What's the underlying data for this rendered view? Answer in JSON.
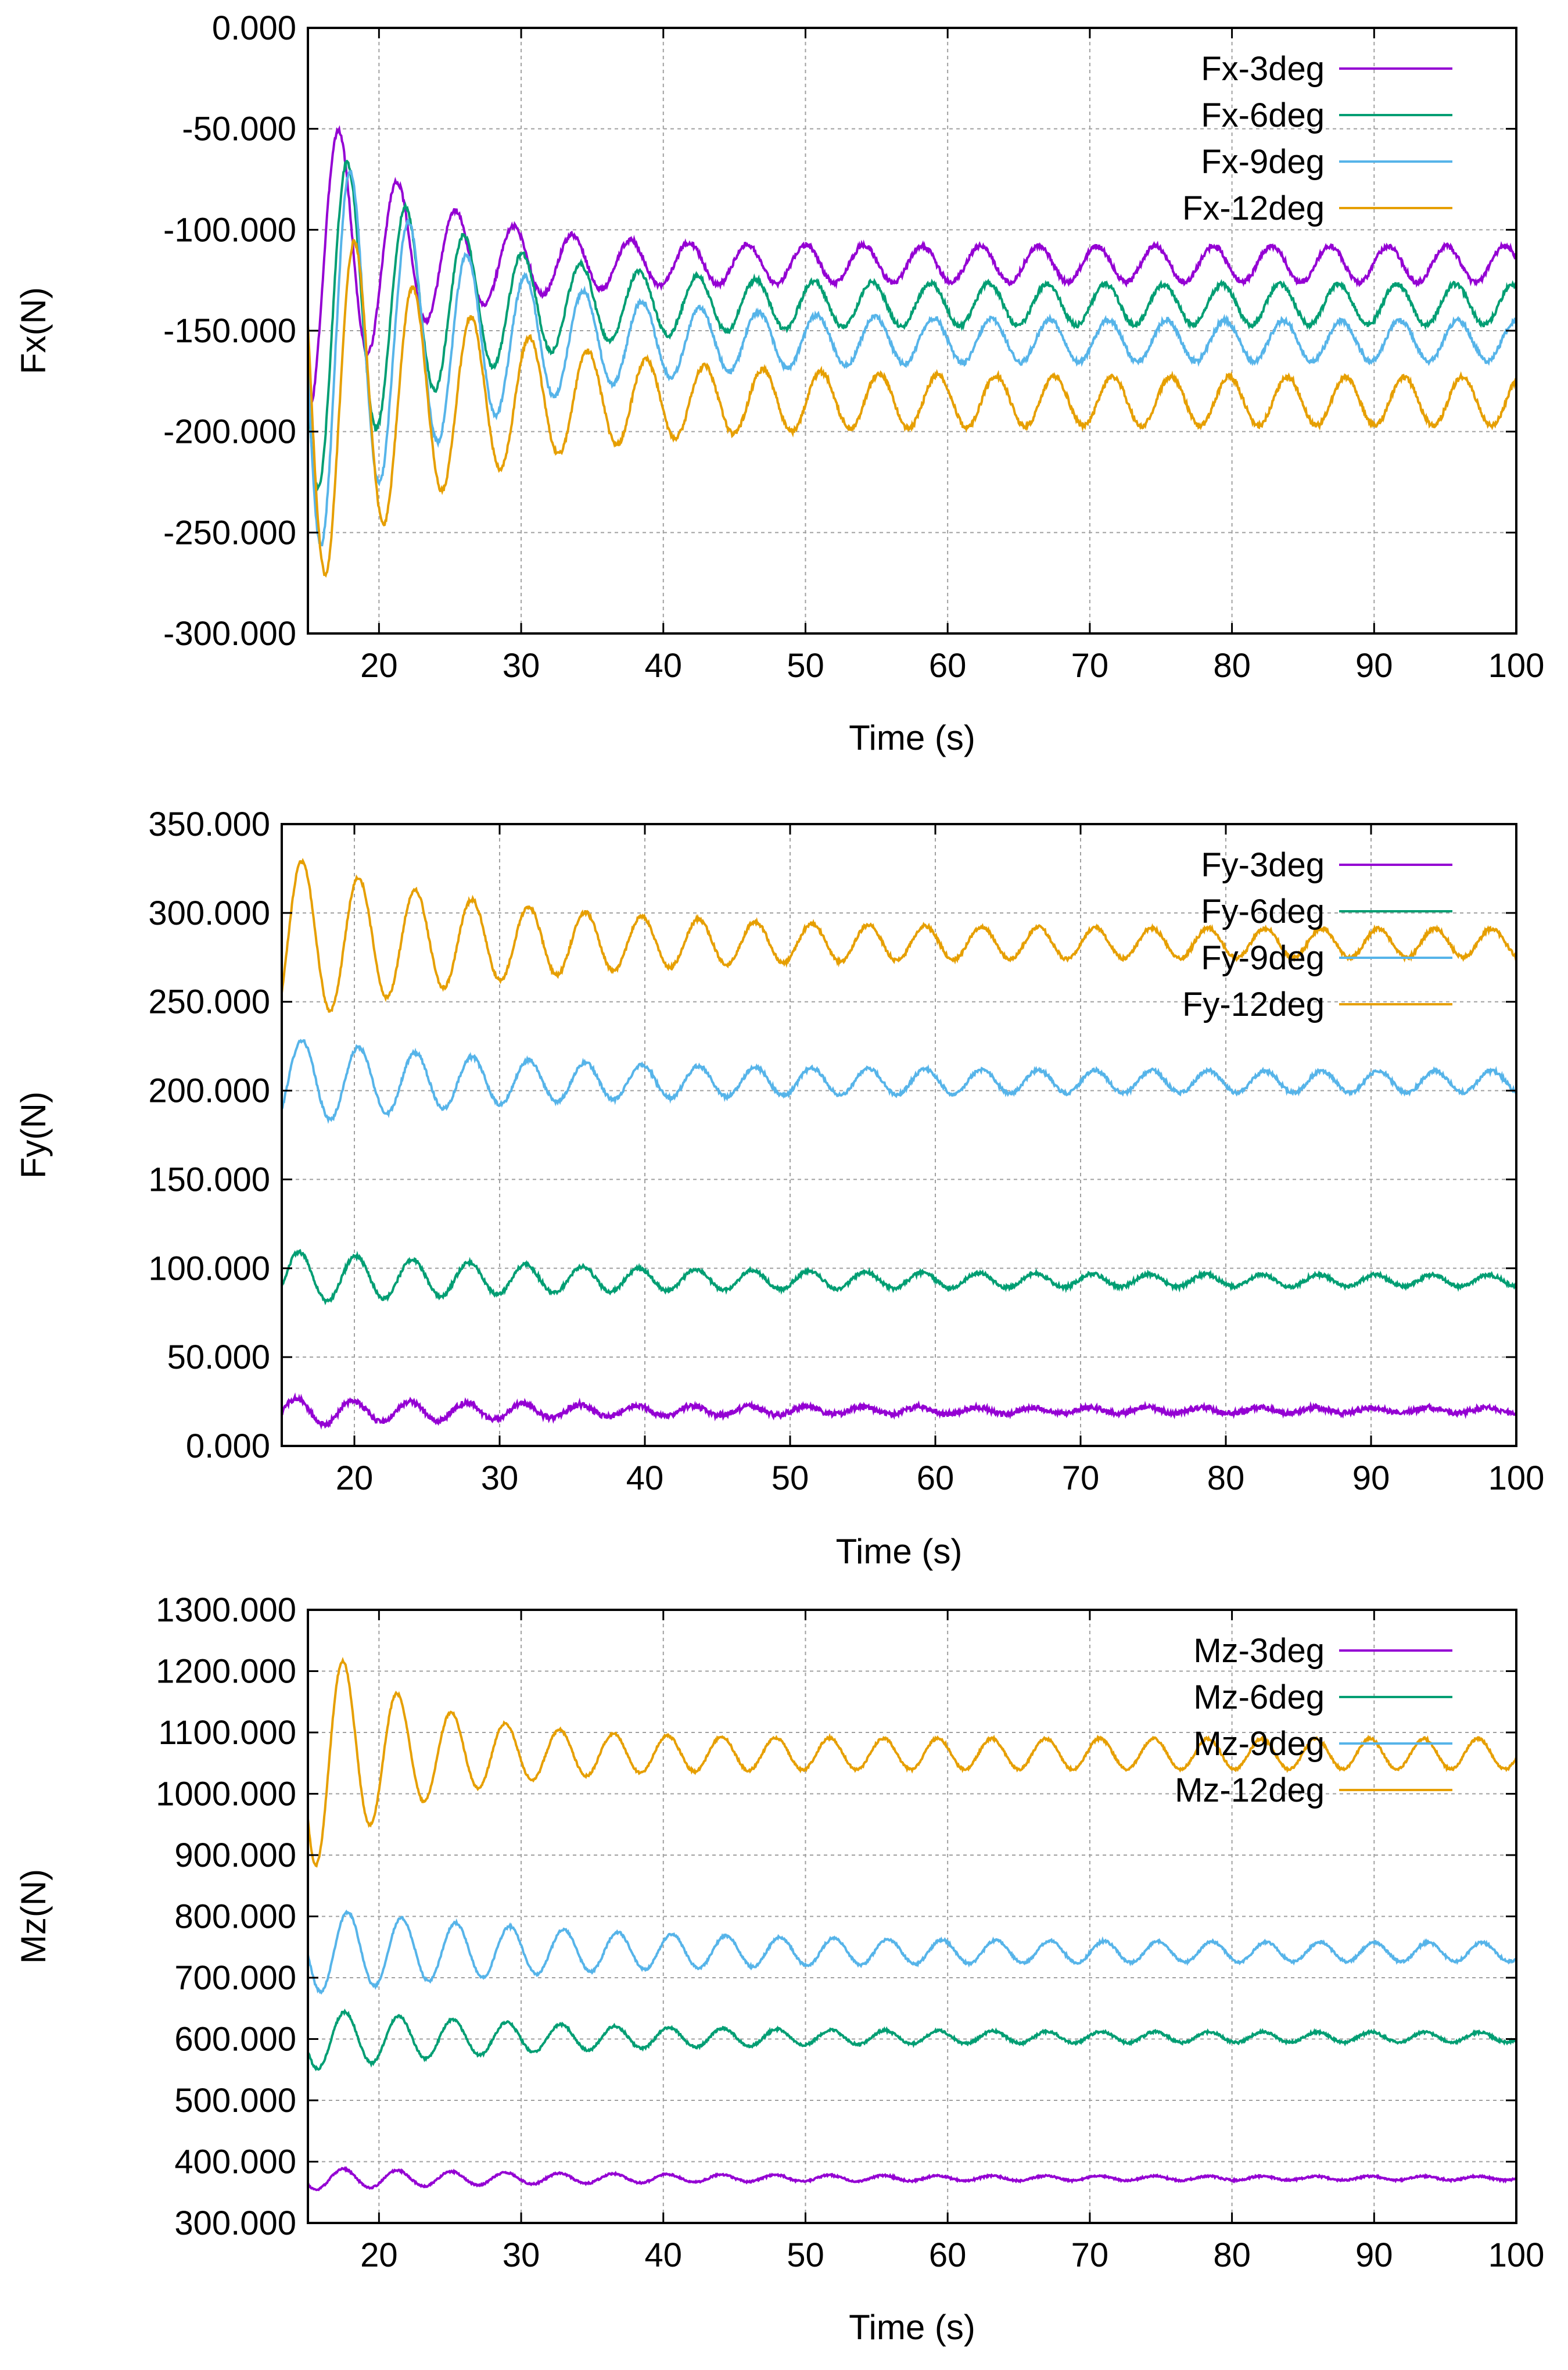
{
  "chart_data": [
    {
      "type": "line",
      "ylabel": "Fx(N)",
      "xlabel": "Time (s)",
      "xlim": [
        15,
        100
      ],
      "ylim": [
        -300,
        0
      ],
      "xticks": [
        20,
        30,
        40,
        50,
        60,
        70,
        80,
        90,
        100
      ],
      "xtick_labels": [
        "20",
        "30",
        "40",
        "50",
        "60",
        "70",
        "80",
        "90",
        "100"
      ],
      "yticks": [
        0,
        -50,
        -100,
        -150,
        -200,
        -250,
        -300
      ],
      "ytick_labels": [
        "0.000",
        "-50.000",
        "-100.000",
        "-150.000",
        "-200.000",
        "-250.000",
        "-300.000"
      ],
      "grid": true,
      "legend": "top-right",
      "series": [
        {
          "name": "Fx-3deg",
          "color": "#9400d3",
          "start": 15,
          "t0": 17.2,
          "period": 4.1,
          "mean0": -110,
          "amp0": 80,
          "mean1": -117,
          "amp1": 9,
          "tau": 7,
          "noise": 1.2
        },
        {
          "name": "Fx-6deg",
          "color": "#009e73",
          "start": 15,
          "t0": 17.8,
          "period": 4.1,
          "mean0": -140,
          "amp0": 95,
          "mean1": -137,
          "amp1": 10,
          "tau": 9,
          "noise": 1.2
        },
        {
          "name": "Fx-9deg",
          "color": "#56b4e9",
          "start": 15,
          "t0": 18.0,
          "period": 4.1,
          "mean0": -155,
          "amp0": 110,
          "mean1": -155,
          "amp1": 10,
          "tau": 10,
          "noise": 1.2
        },
        {
          "name": "Fx-12deg",
          "color": "#e69f00",
          "start": 15,
          "t0": 18.3,
          "period": 4.1,
          "mean0": -180,
          "amp0": 100,
          "mean1": -185,
          "amp1": 12,
          "tau": 10,
          "noise": 1.2
        }
      ]
    },
    {
      "type": "line",
      "ylabel": "Fy(N)",
      "xlabel": "Time (s)",
      "xlim": [
        15,
        100
      ],
      "ylim": [
        0,
        350
      ],
      "xticks": [
        20,
        30,
        40,
        50,
        60,
        70,
        80,
        90,
        100
      ],
      "xtick_labels": [
        "20",
        "30",
        "40",
        "50",
        "60",
        "70",
        "80",
        "90",
        "100"
      ],
      "yticks": [
        0,
        50,
        100,
        150,
        200,
        250,
        300,
        350
      ],
      "ytick_labels": [
        "0.000",
        "50.000",
        "100.000",
        "150.000",
        "200.000",
        "250.000",
        "300.000",
        "350.000"
      ],
      "grid": true,
      "legend": "top-right",
      "series": [
        {
          "name": "Fy-3deg",
          "color": "#9400d3",
          "start": 15,
          "t0": 16.0,
          "period": 3.9,
          "mean0": 19,
          "amp0": 8,
          "mean1": 20,
          "amp1": 1.5,
          "tau": 18,
          "noise": 1.5
        },
        {
          "name": "Fy-6deg",
          "color": "#009e73",
          "start": 15,
          "t0": 16.2,
          "period": 3.9,
          "mean0": 95,
          "amp0": 15,
          "mean1": 93,
          "amp1": 3,
          "tau": 20,
          "noise": 1.0
        },
        {
          "name": "Fy-9deg",
          "color": "#56b4e9",
          "start": 15,
          "t0": 16.4,
          "period": 3.9,
          "mean0": 205,
          "amp0": 25,
          "mean1": 205,
          "amp1": 6,
          "tau": 15,
          "noise": 1.0
        },
        {
          "name": "Fy-12deg",
          "color": "#e69f00",
          "start": 15,
          "t0": 16.4,
          "period": 3.9,
          "mean0": 285,
          "amp0": 48,
          "mean1": 283,
          "amp1": 8,
          "tau": 14,
          "noise": 1.0
        }
      ]
    },
    {
      "type": "line",
      "ylabel": "Mz(N)",
      "xlabel": "Time (s)",
      "xlim": [
        15,
        100
      ],
      "ylim": [
        300,
        1300
      ],
      "xticks": [
        20,
        30,
        40,
        50,
        60,
        70,
        80,
        90,
        100
      ],
      "xtick_labels": [
        "20",
        "30",
        "40",
        "50",
        "60",
        "70",
        "80",
        "90",
        "100"
      ],
      "yticks": [
        300,
        400,
        500,
        600,
        700,
        800,
        900,
        1000,
        1100,
        1200,
        1300
      ],
      "ytick_labels": [
        "300.000",
        "400.000",
        "500.000",
        "600.000",
        "700.000",
        "800.000",
        "900.000",
        "1000.000",
        "1100.000",
        "1200.000",
        "1300.000"
      ],
      "grid": true,
      "legend": "top-right",
      "series": [
        {
          "name": "Mz-3deg",
          "color": "#9400d3",
          "start": 15,
          "t0": 17.5,
          "period": 3.8,
          "mean0": 372,
          "amp0": 18,
          "mean1": 373,
          "amp1": 3,
          "tau": 18,
          "noise": 1.5
        },
        {
          "name": "Mz-6deg",
          "color": "#009e73",
          "start": 15,
          "t0": 17.6,
          "period": 3.8,
          "mean0": 600,
          "amp0": 50,
          "mean1": 603,
          "amp1": 8,
          "tau": 16,
          "noise": 2.0
        },
        {
          "name": "Mz-9deg",
          "color": "#56b4e9",
          "start": 15,
          "t0": 17.8,
          "period": 3.8,
          "mean0": 745,
          "amp0": 70,
          "mean1": 742,
          "amp1": 15,
          "tau": 18,
          "noise": 2.0
        },
        {
          "name": "Mz-12deg",
          "color": "#e69f00",
          "start": 15,
          "t0": 17.5,
          "period": 3.8,
          "mean0": 1070,
          "amp0": 200,
          "mean1": 1065,
          "amp1": 25,
          "tau": 7,
          "noise": 2.0
        }
      ]
    }
  ]
}
